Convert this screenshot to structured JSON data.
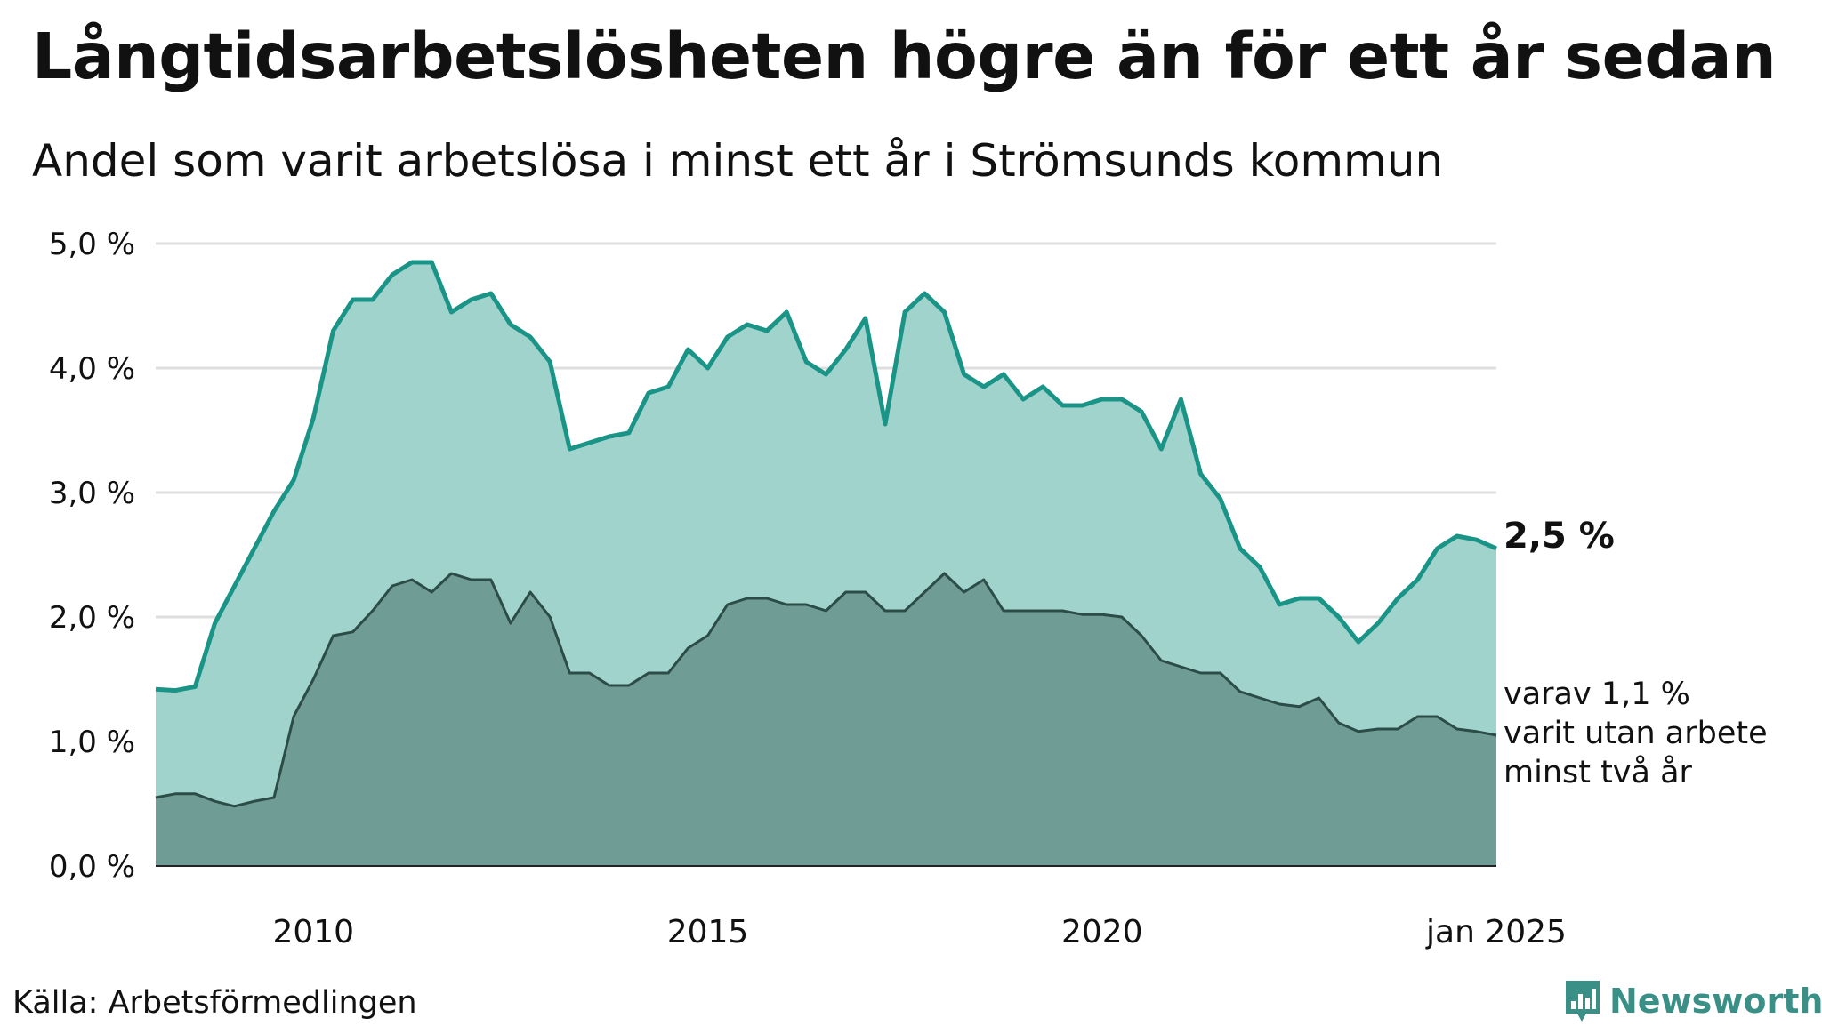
{
  "title": "Långtidsarbetslösheten högre än för ett år sedan",
  "subtitle": "Andel som varit arbetslösa i minst ett år i Strömsunds kommun",
  "source": "Källa: Arbetsförmedlingen",
  "brand": {
    "name": "Newsworthy",
    "icon": "newsworthy-logo-icon",
    "color": "#3a8f86"
  },
  "colors": {
    "upper_line": "#199486",
    "upper_fill": "#a1d3cd",
    "lower_line": "#2c4c48",
    "lower_fill": "#709c96",
    "grid": "#dedede"
  },
  "chart_data": {
    "type": "area",
    "x_ticks": [
      "2010",
      "2015",
      "2020",
      "jan 2025"
    ],
    "x_range": [
      2008.0,
      2025.0
    ],
    "y_ticks": [
      "0,0 %",
      "1,0 %",
      "2,0 %",
      "3,0 %",
      "4,0 %",
      "5,0 %"
    ],
    "ylim": [
      0,
      5
    ],
    "grid": true,
    "end_label_upper": "2,5 %",
    "end_label_lower": [
      "varav 1,1 %",
      "varit utan arbete",
      "minst två år"
    ],
    "series": [
      {
        "key": "minst_ett_ar",
        "x": [
          2008.0,
          2008.25,
          2008.5,
          2008.75,
          2009.0,
          2009.25,
          2009.5,
          2009.75,
          2010.0,
          2010.25,
          2010.5,
          2010.75,
          2011.0,
          2011.25,
          2011.5,
          2011.75,
          2012.0,
          2012.25,
          2012.5,
          2012.75,
          2013.0,
          2013.25,
          2013.5,
          2013.75,
          2014.0,
          2014.25,
          2014.5,
          2014.75,
          2015.0,
          2015.25,
          2015.5,
          2015.75,
          2016.0,
          2016.25,
          2016.5,
          2016.75,
          2017.0,
          2017.25,
          2017.5,
          2017.75,
          2018.0,
          2018.25,
          2018.5,
          2018.75,
          2019.0,
          2019.25,
          2019.5,
          2019.75,
          2020.0,
          2020.25,
          2020.5,
          2020.75,
          2021.0,
          2021.25,
          2021.5,
          2021.75,
          2022.0,
          2022.25,
          2022.5,
          2022.75,
          2023.0,
          2023.25,
          2023.5,
          2023.75,
          2024.0,
          2024.25,
          2024.5,
          2024.75,
          2025.0
        ],
        "values": [
          1.42,
          1.41,
          1.44,
          1.95,
          2.25,
          2.55,
          2.85,
          3.1,
          3.6,
          4.3,
          4.55,
          4.55,
          4.75,
          4.85,
          4.85,
          4.45,
          4.55,
          4.6,
          4.35,
          4.25,
          4.05,
          3.35,
          3.4,
          3.45,
          3.48,
          3.8,
          3.85,
          4.15,
          4.0,
          4.25,
          4.35,
          4.3,
          4.45,
          4.05,
          3.95,
          4.15,
          4.4,
          3.55,
          4.45,
          4.6,
          4.45,
          3.95,
          3.85,
          3.95,
          3.75,
          3.85,
          3.7,
          3.7,
          3.75,
          3.75,
          3.65,
          3.35,
          3.75,
          3.15,
          2.95,
          2.55,
          2.4,
          2.1,
          2.15,
          2.15,
          2.0,
          1.8,
          1.95,
          2.15,
          2.3,
          2.55,
          2.65,
          2.62,
          2.55
        ]
      },
      {
        "key": "minst_tva_ar",
        "x": [
          2008.0,
          2008.25,
          2008.5,
          2008.75,
          2009.0,
          2009.25,
          2009.5,
          2009.75,
          2010.0,
          2010.25,
          2010.5,
          2010.75,
          2011.0,
          2011.25,
          2011.5,
          2011.75,
          2012.0,
          2012.25,
          2012.5,
          2012.75,
          2013.0,
          2013.25,
          2013.5,
          2013.75,
          2014.0,
          2014.25,
          2014.5,
          2014.75,
          2015.0,
          2015.25,
          2015.5,
          2015.75,
          2016.0,
          2016.25,
          2016.5,
          2016.75,
          2017.0,
          2017.25,
          2017.5,
          2017.75,
          2018.0,
          2018.25,
          2018.5,
          2018.75,
          2019.0,
          2019.25,
          2019.5,
          2019.75,
          2020.0,
          2020.25,
          2020.5,
          2020.75,
          2021.0,
          2021.25,
          2021.5,
          2021.75,
          2022.0,
          2022.25,
          2022.5,
          2022.75,
          2023.0,
          2023.25,
          2023.5,
          2023.75,
          2024.0,
          2024.25,
          2024.5,
          2024.75,
          2025.0
        ],
        "values": [
          0.55,
          0.58,
          0.58,
          0.52,
          0.48,
          0.52,
          0.55,
          1.2,
          1.5,
          1.85,
          1.88,
          2.05,
          2.25,
          2.3,
          2.2,
          2.35,
          2.3,
          2.3,
          1.95,
          2.2,
          2.0,
          1.55,
          1.55,
          1.45,
          1.45,
          1.55,
          1.55,
          1.75,
          1.85,
          2.1,
          2.15,
          2.15,
          2.1,
          2.1,
          2.05,
          2.2,
          2.2,
          2.05,
          2.05,
          2.2,
          2.35,
          2.2,
          2.3,
          2.05,
          2.05,
          2.05,
          2.05,
          2.02,
          2.02,
          2.0,
          1.85,
          1.65,
          1.6,
          1.55,
          1.55,
          1.4,
          1.35,
          1.3,
          1.28,
          1.35,
          1.15,
          1.08,
          1.1,
          1.1,
          1.2,
          1.2,
          1.1,
          1.08,
          1.05
        ]
      }
    ]
  }
}
